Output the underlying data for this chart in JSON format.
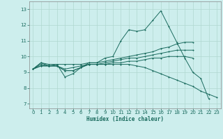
{
  "xlabel": "Humidex (Indice chaleur)",
  "background_color": "#cdeeed",
  "grid_color": "#b0d8d0",
  "line_color": "#1a6b5e",
  "xlim": [
    -0.5,
    23.5
  ],
  "ylim": [
    6.7,
    13.5
  ],
  "yticks": [
    7,
    8,
    9,
    10,
    11,
    12,
    13
  ],
  "xticks": [
    0,
    1,
    2,
    3,
    4,
    5,
    6,
    7,
    8,
    9,
    10,
    11,
    12,
    13,
    14,
    15,
    16,
    17,
    18,
    19,
    20,
    21,
    22,
    23
  ],
  "series": [
    [
      9.2,
      9.6,
      9.4,
      9.5,
      8.7,
      8.9,
      9.3,
      9.6,
      9.6,
      9.9,
      10.0,
      11.0,
      11.7,
      11.6,
      11.7,
      12.3,
      12.9,
      11.9,
      10.9,
      9.9,
      9.0,
      8.6,
      7.3,
      null
    ],
    [
      9.2,
      9.6,
      9.5,
      9.5,
      9.5,
      9.5,
      9.5,
      9.6,
      9.6,
      9.7,
      9.8,
      9.9,
      10.0,
      10.1,
      10.2,
      10.3,
      10.5,
      10.6,
      10.8,
      10.9,
      10.9,
      null,
      null,
      null
    ],
    [
      9.2,
      9.5,
      9.4,
      9.4,
      9.2,
      9.3,
      9.4,
      9.5,
      9.5,
      9.6,
      9.7,
      9.8,
      9.9,
      9.9,
      10.0,
      10.1,
      10.2,
      10.3,
      10.4,
      10.4,
      10.4,
      null,
      null,
      null
    ],
    [
      9.2,
      9.4,
      9.4,
      9.4,
      9.1,
      9.1,
      9.3,
      9.5,
      9.5,
      9.5,
      9.6,
      9.6,
      9.7,
      9.7,
      9.8,
      9.9,
      9.9,
      10.0,
      10.0,
      10.0,
      9.9,
      null,
      null,
      null
    ],
    [
      9.2,
      9.4,
      9.4,
      9.4,
      9.1,
      9.1,
      9.3,
      9.5,
      9.5,
      9.5,
      9.5,
      9.5,
      9.5,
      9.4,
      9.3,
      9.1,
      8.9,
      8.7,
      8.5,
      8.3,
      8.1,
      7.8,
      7.6,
      7.4
    ]
  ],
  "tick_fontsize": 5.0,
  "xlabel_fontsize": 5.5,
  "marker_size": 2.0,
  "linewidth": 0.7
}
